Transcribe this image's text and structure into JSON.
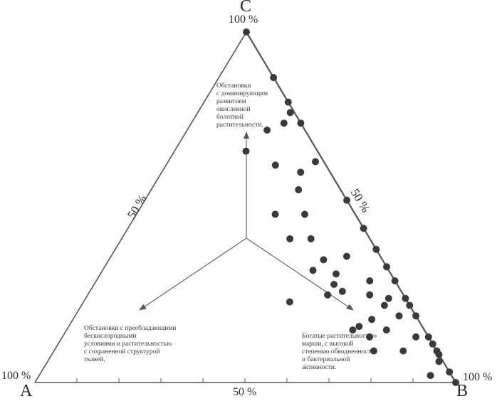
{
  "vertices": {
    "a": "A",
    "b": "B",
    "c": "C"
  },
  "labels": {
    "c_pct": "100 %",
    "a_pct": "100 %",
    "b_pct": "100 %",
    "ab_mid": "50 %",
    "ac_mid": "50 %",
    "bc_mid": "50 %"
  },
  "notes": {
    "top": "Обстановки\nс доминирующим\nразвитием\nокисленной\nболотной\nрастительности.",
    "left": "Обстановки с преобладающими\nбескислородными\nусловиями и растительностью\nс сохраненной структурой\nтканей.",
    "right": "Богатые растительностью\nмарши, с высокой\nстепенью обводненности\nи бактериальной\nактивности."
  },
  "chart_data": {
    "type": "scatter",
    "coordinate_system": "ternary",
    "components": [
      "A",
      "B",
      "C"
    ],
    "points": [
      {
        "A": 0.0,
        "B": 0.0,
        "C": 1.0
      },
      {
        "A": 0.0,
        "B": 0.13,
        "C": 0.87
      },
      {
        "A": 0.0,
        "B": 0.2,
        "C": 0.8
      },
      {
        "A": 0.01,
        "B": 0.22,
        "C": 0.77
      },
      {
        "A": 0.04,
        "B": 0.22,
        "C": 0.74
      },
      {
        "A": 0.0,
        "B": 0.26,
        "C": 0.74
      },
      {
        "A": 0.09,
        "B": 0.19,
        "C": 0.72
      },
      {
        "A": 0.17,
        "B": 0.17,
        "C": 0.66
      },
      {
        "A": 0.02,
        "B": 0.35,
        "C": 0.63
      },
      {
        "A": 0.12,
        "B": 0.26,
        "C": 0.62
      },
      {
        "A": 0.07,
        "B": 0.33,
        "C": 0.6
      },
      {
        "A": 0.1,
        "B": 0.35,
        "C": 0.55
      },
      {
        "A": 0.0,
        "B": 0.48,
        "C": 0.52
      },
      {
        "A": 0.12,
        "B": 0.4,
        "C": 0.48
      },
      {
        "A": 0.19,
        "B": 0.33,
        "C": 0.48
      },
      {
        "A": 0.0,
        "B": 0.56,
        "C": 0.44
      },
      {
        "A": 0.19,
        "B": 0.4,
        "C": 0.41
      },
      {
        "A": 0.14,
        "B": 0.45,
        "C": 0.41
      },
      {
        "A": 0.0,
        "B": 0.62,
        "C": 0.38
      },
      {
        "A": 0.08,
        "B": 0.56,
        "C": 0.36
      },
      {
        "A": 0.14,
        "B": 0.51,
        "C": 0.35
      },
      {
        "A": 0.0,
        "B": 0.67,
        "C": 0.33
      },
      {
        "A": 0.18,
        "B": 0.5,
        "C": 0.32
      },
      {
        "A": 0.13,
        "B": 0.56,
        "C": 0.31
      },
      {
        "A": 0.06,
        "B": 0.65,
        "C": 0.29
      },
      {
        "A": 0.0,
        "B": 0.71,
        "C": 0.29
      },
      {
        "A": 0.15,
        "B": 0.57,
        "C": 0.28
      },
      {
        "A": 0.14,
        "B": 0.6,
        "C": 0.26
      },
      {
        "A": 0.18,
        "B": 0.57,
        "C": 0.25
      },
      {
        "A": 0.08,
        "B": 0.67,
        "C": 0.25
      },
      {
        "A": 0.28,
        "B": 0.49,
        "C": 0.23
      },
      {
        "A": 0.04,
        "B": 0.72,
        "C": 0.24
      },
      {
        "A": 0.0,
        "B": 0.76,
        "C": 0.24
      },
      {
        "A": 0.06,
        "B": 0.72,
        "C": 0.22
      },
      {
        "A": 0.0,
        "B": 0.78,
        "C": 0.22
      },
      {
        "A": 0.04,
        "B": 0.77,
        "C": 0.19
      },
      {
        "A": 0.0,
        "B": 0.81,
        "C": 0.19
      },
      {
        "A": 0.11,
        "B": 0.71,
        "C": 0.18
      },
      {
        "A": 0.15,
        "B": 0.69,
        "C": 0.16
      },
      {
        "A": 0.17,
        "B": 0.68,
        "C": 0.15
      },
      {
        "A": 0.09,
        "B": 0.76,
        "C": 0.15
      },
      {
        "A": 0.03,
        "B": 0.84,
        "C": 0.13
      },
      {
        "A": 0.14,
        "B": 0.73,
        "C": 0.13
      },
      {
        "A": 0.0,
        "B": 0.87,
        "C": 0.13
      },
      {
        "A": 0.0,
        "B": 0.89,
        "C": 0.11
      },
      {
        "A": 0.08,
        "B": 0.83,
        "C": 0.09
      },
      {
        "A": 0.15,
        "B": 0.76,
        "C": 0.09
      },
      {
        "A": 0.0,
        "B": 0.91,
        "C": 0.09
      },
      {
        "A": 0.0,
        "B": 0.92,
        "C": 0.08
      },
      {
        "A": 0.01,
        "B": 0.93,
        "C": 0.06
      },
      {
        "A": 0.05,
        "B": 0.93,
        "C": 0.02
      },
      {
        "A": 0.0,
        "B": 0.97,
        "C": 0.03
      },
      {
        "A": 0.0,
        "B": 1.0,
        "C": 0.0
      }
    ]
  }
}
